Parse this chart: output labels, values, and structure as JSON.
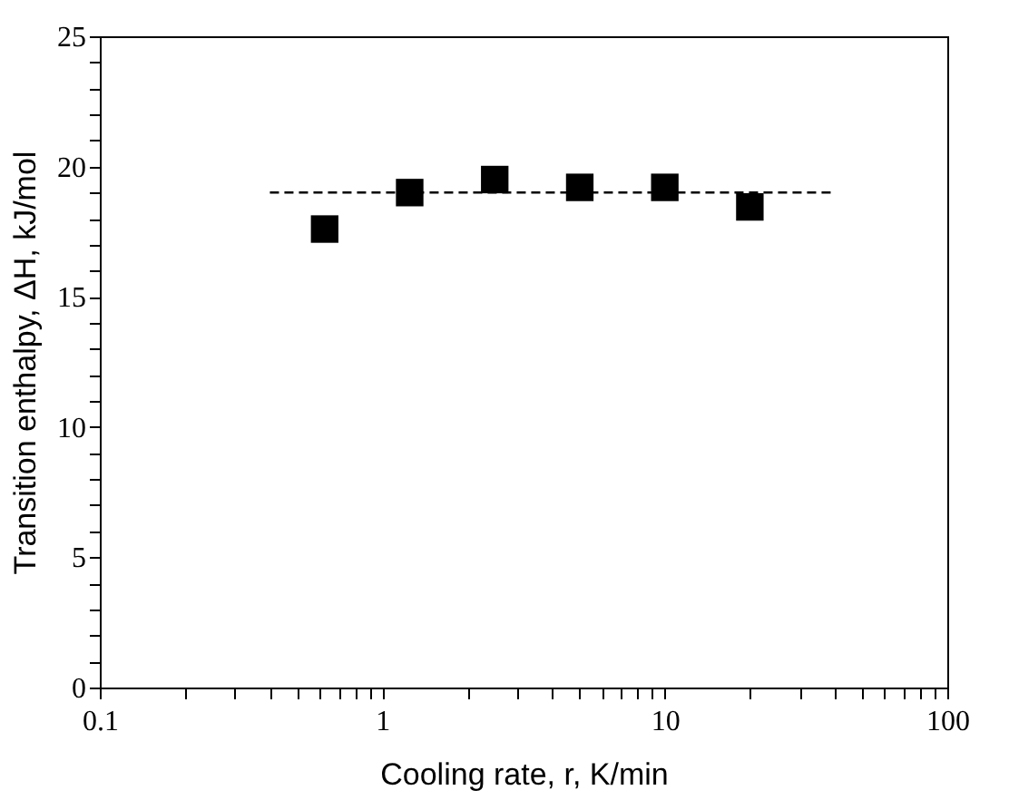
{
  "chart_data": {
    "type": "scatter",
    "xlabel": "Cooling rate, r, K/min",
    "ylabel": "Transition enthalpy, ΔH, kJ/mol",
    "log": "x",
    "xlim": [
      0.1,
      100
    ],
    "ylim": [
      0,
      25
    ],
    "xticks": [
      0.1,
      {
        "value": 0.2,
        "label": null
      },
      {
        "value": 0.3,
        "label": null
      },
      {
        "value": 0.4,
        "label": null
      },
      {
        "value": 0.5,
        "label": null
      },
      {
        "value": 0.6,
        "label": null
      },
      {
        "value": 0.7,
        "label": null
      },
      {
        "value": 0.8,
        "label": null
      },
      {
        "value": 0.9,
        "label": null
      },
      1,
      {
        "value": 2,
        "label": null
      },
      {
        "value": 3,
        "label": null
      },
      {
        "value": 4,
        "label": null
      },
      {
        "value": 5,
        "label": null
      },
      {
        "value": 6,
        "label": null
      },
      {
        "value": 7,
        "label": null
      },
      {
        "value": 8,
        "label": null
      },
      {
        "value": 9,
        "label": null
      },
      10,
      {
        "value": 20,
        "label": null
      },
      {
        "value": 30,
        "label": null
      },
      {
        "value": 40,
        "label": null
      },
      {
        "value": 50,
        "label": null
      },
      {
        "value": 60,
        "label": null
      },
      {
        "value": 70,
        "label": null
      },
      {
        "value": 80,
        "label": null
      },
      {
        "value": 90,
        "label": null
      },
      100
    ],
    "yticks": [
      0,
      {
        "value": 1,
        "label": null
      },
      {
        "value": 2,
        "label": null
      },
      {
        "value": 3,
        "label": null
      },
      {
        "value": 4,
        "label": null
      },
      5,
      {
        "value": 6,
        "label": null
      },
      {
        "value": 7,
        "label": null
      },
      {
        "value": 8,
        "label": null
      },
      {
        "value": 9,
        "label": null
      },
      10,
      {
        "value": 11,
        "label": null
      },
      {
        "value": 12,
        "label": null
      },
      {
        "value": 13,
        "label": null
      },
      {
        "value": 14,
        "label": null
      },
      15,
      {
        "value": 16,
        "label": null
      },
      {
        "value": 17,
        "label": null
      },
      {
        "value": 18,
        "label": null
      },
      {
        "value": 19,
        "label": null
      },
      20,
      {
        "value": 21,
        "label": null
      },
      {
        "value": 22,
        "label": null
      },
      {
        "value": 23,
        "label": null
      },
      {
        "value": 24,
        "label": null
      },
      25
    ],
    "series": [
      {
        "color": "#000000",
        "marker": "square",
        "x": [
          0.625,
          1.25,
          2.5,
          5,
          10,
          20
        ],
        "values": [
          17.6,
          19.0,
          19.5,
          19.2,
          19.2,
          18.45
        ]
      },
      {
        "type": "line",
        "color": "#000000",
        "line_style": "dashed",
        "x": [
          0.4,
          40
        ],
        "values": [
          19,
          19
        ]
      }
    ]
  }
}
